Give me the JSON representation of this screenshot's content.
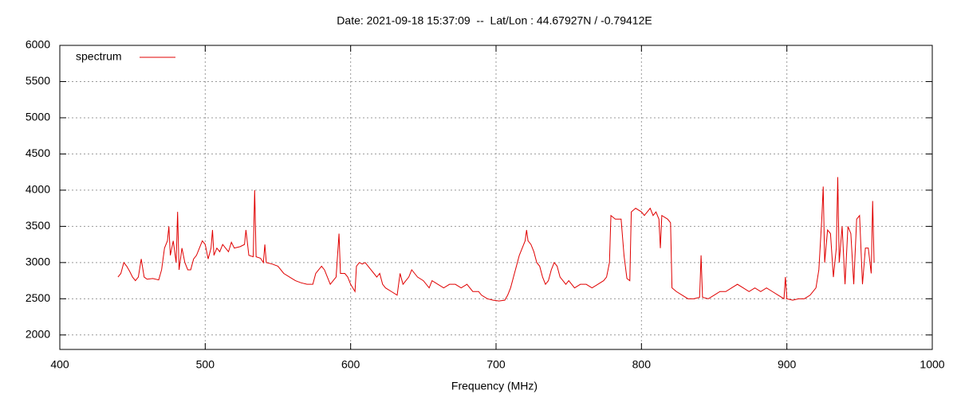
{
  "chart_data": {
    "type": "line",
    "title": "Date: 2021-09-18 15:37:09  --  Lat/Lon : 44.67927N / -0.79412E",
    "xlabel": "Frequency (MHz)",
    "legend": "upper left",
    "grid": true,
    "xlim": [
      400,
      1000
    ],
    "xticks": [
      400,
      500,
      600,
      700,
      800,
      900,
      1000
    ],
    "ylim": [
      1800,
      6000
    ],
    "yticks": [
      2000,
      2500,
      3000,
      3500,
      4000,
      4500,
      5000,
      5500,
      6000
    ],
    "x": [
      440,
      442,
      444,
      446,
      448,
      450,
      452,
      454,
      456,
      458,
      460,
      464,
      468,
      470,
      472,
      474,
      475,
      476,
      478,
      480,
      481,
      482,
      484,
      486,
      488,
      490,
      492,
      494,
      496,
      498,
      500,
      502,
      504,
      505,
      506,
      508,
      510,
      512,
      514,
      516,
      518,
      520,
      524,
      527,
      528,
      530,
      533,
      534,
      535,
      538,
      540,
      541,
      542,
      546,
      550,
      554,
      558,
      562,
      566,
      570,
      574,
      576,
      578,
      580,
      582,
      584,
      586,
      588,
      590,
      592,
      593,
      596,
      598,
      600,
      603,
      604,
      606,
      608,
      610,
      612,
      614,
      616,
      618,
      620,
      622,
      624,
      628,
      632,
      634,
      636,
      638,
      640,
      642,
      644,
      646,
      650,
      654,
      656,
      660,
      664,
      668,
      672,
      676,
      680,
      684,
      688,
      690,
      694,
      698,
      702,
      706,
      708,
      710,
      712,
      714,
      716,
      718,
      720,
      721,
      722,
      724,
      726,
      728,
      730,
      732,
      734,
      736,
      738,
      740,
      742,
      744,
      746,
      748,
      750,
      754,
      758,
      762,
      766,
      770,
      774,
      776,
      778,
      779,
      782,
      786,
      788,
      790,
      792,
      793,
      796,
      800,
      802,
      804,
      806,
      808,
      810,
      812,
      813,
      814,
      818,
      820,
      821,
      824,
      828,
      832,
      836,
      840,
      841,
      842,
      846,
      850,
      854,
      858,
      862,
      866,
      870,
      874,
      878,
      882,
      886,
      890,
      894,
      898,
      899,
      900,
      904,
      908,
      912,
      916,
      920,
      922,
      924,
      925,
      926,
      928,
      930,
      932,
      934,
      935,
      936,
      938,
      940,
      942,
      944,
      946,
      948,
      950,
      952,
      954,
      956,
      958,
      959,
      960
    ],
    "series": [
      {
        "name": "spectrum",
        "color": "#e00000",
        "values": [
          2800,
          2850,
          3000,
          2950,
          2880,
          2800,
          2750,
          2800,
          3050,
          2800,
          2770,
          2780,
          2760,
          2900,
          3200,
          3300,
          3500,
          3100,
          3300,
          3000,
          3700,
          2900,
          3200,
          3000,
          2900,
          2900,
          3050,
          3100,
          3200,
          3300,
          3250,
          3050,
          3200,
          3450,
          3100,
          3200,
          3150,
          3250,
          3200,
          3150,
          3280,
          3200,
          3220,
          3250,
          3450,
          3100,
          3080,
          4000,
          3080,
          3060,
          3000,
          3250,
          3000,
          2980,
          2950,
          2850,
          2800,
          2750,
          2720,
          2700,
          2700,
          2850,
          2900,
          2950,
          2900,
          2800,
          2700,
          2750,
          2800,
          3400,
          2850,
          2850,
          2800,
          2700,
          2600,
          2950,
          3000,
          2980,
          3000,
          2950,
          2900,
          2850,
          2800,
          2850,
          2700,
          2650,
          2600,
          2550,
          2850,
          2700,
          2750,
          2800,
          2900,
          2850,
          2800,
          2750,
          2650,
          2750,
          2700,
          2650,
          2700,
          2700,
          2650,
          2700,
          2600,
          2600,
          2550,
          2500,
          2480,
          2470,
          2480,
          2550,
          2650,
          2800,
          2950,
          3100,
          3200,
          3300,
          3450,
          3300,
          3250,
          3150,
          3000,
          2950,
          2800,
          2700,
          2750,
          2900,
          3000,
          2950,
          2800,
          2750,
          2700,
          2750,
          2650,
          2700,
          2700,
          2650,
          2700,
          2750,
          2800,
          3000,
          3650,
          3600,
          3600,
          3100,
          2780,
          2750,
          3700,
          3750,
          3700,
          3650,
          3700,
          3750,
          3650,
          3700,
          3600,
          3200,
          3650,
          3600,
          3550,
          2650,
          2600,
          2550,
          2500,
          2500,
          2520,
          3100,
          2520,
          2500,
          2550,
          2600,
          2600,
          2650,
          2700,
          2650,
          2600,
          2650,
          2600,
          2650,
          2600,
          2550,
          2500,
          2800,
          2500,
          2480,
          2500,
          2500,
          2550,
          2650,
          2900,
          3600,
          4050,
          3000,
          3450,
          3400,
          2800,
          3200,
          4180,
          3000,
          3500,
          2700,
          3500,
          3400,
          2700,
          3600,
          3650,
          2700,
          3200,
          3200,
          2850,
          3850,
          3000
        ]
      }
    ]
  }
}
